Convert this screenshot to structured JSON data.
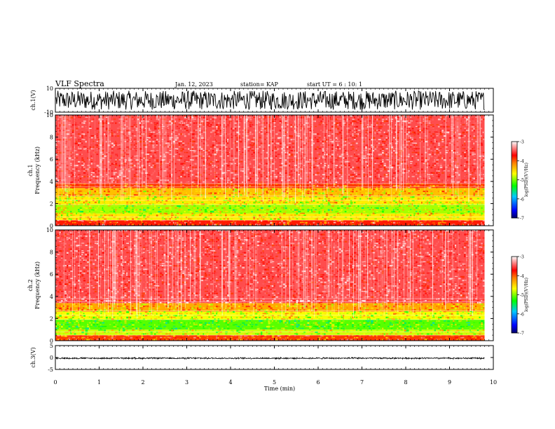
{
  "header": {
    "title": "VLF Spectra",
    "date": "Jan. 12, 2023",
    "station": "station= KAP",
    "start": "start UT = 6 : 10: 1"
  },
  "colors": {
    "background": "#ffffff",
    "axis": "#000000",
    "signal": "#000000",
    "colormap": [
      "#000066",
      "#0000ff",
      "#00c8ff",
      "#00ff00",
      "#ffff00",
      "#ff8000",
      "#ff0000",
      "#ff9999",
      "#ffffff"
    ]
  },
  "chart_data": [
    {
      "type": "line",
      "panel": "ch1_waveform",
      "ylabel": "ch.1(V)",
      "ylim": [
        -10,
        10
      ],
      "y_ticks": [
        "10",
        "-10"
      ],
      "x_range": [
        0,
        10
      ],
      "data_end": 9.8,
      "trace_level": 0,
      "trace_amplitude": 8
    },
    {
      "type": "heatmap",
      "panel": "ch1_spectrogram",
      "ylabel": "ch.1\nFrequency (kHz)",
      "ylim": [
        0,
        10
      ],
      "y_ticks": [
        "0",
        "2",
        "4",
        "6",
        "8",
        "10"
      ],
      "x_range": [
        0,
        10
      ],
      "data_end": 9.8,
      "bands": [
        {
          "from": 0,
          "to": 0.5,
          "level": -3.8
        },
        {
          "from": 0.5,
          "to": 1.1,
          "level": -4.6
        },
        {
          "from": 1.1,
          "to": 1.9,
          "level": -4.9
        },
        {
          "from": 1.9,
          "to": 2.6,
          "level": -4.6
        },
        {
          "from": 2.6,
          "to": 3.4,
          "level": -4.4
        },
        {
          "from": 3.4,
          "to": 3.8,
          "level": -3.9
        },
        {
          "from": 3.8,
          "to": 10,
          "level": -3.5
        }
      ],
      "colorbar": {
        "label": "log(PSD)(V²/Hz)",
        "ticks": [
          "-3",
          "-4",
          "-5",
          "-6",
          "-7"
        ],
        "range": [
          -7,
          -3
        ]
      }
    },
    {
      "type": "heatmap",
      "panel": "ch2_spectrogram",
      "ylabel": "ch.2\nFrequency (kHz)",
      "ylim": [
        0,
        10
      ],
      "y_ticks": [
        "0",
        "2",
        "4",
        "6",
        "8",
        "10"
      ],
      "x_range": [
        0,
        10
      ],
      "data_end": 9.8,
      "bands": [
        {
          "from": 0,
          "to": 0.5,
          "level": -3.9
        },
        {
          "from": 0.5,
          "to": 1.0,
          "level": -4.8
        },
        {
          "from": 1.0,
          "to": 1.9,
          "level": -5.1
        },
        {
          "from": 1.9,
          "to": 2.6,
          "level": -4.7
        },
        {
          "from": 2.6,
          "to": 3.4,
          "level": -4.3
        },
        {
          "from": 3.4,
          "to": 10,
          "level": -3.5
        }
      ],
      "colorbar": {
        "label": "log(PSD)(V²/Hz)",
        "ticks": [
          "-3",
          "-4",
          "-5",
          "-6",
          "-7"
        ],
        "range": [
          -7,
          -3
        ]
      }
    },
    {
      "type": "line",
      "panel": "ch3_waveform",
      "ylabel": "ch.3(V)",
      "ylim": [
        -5,
        5
      ],
      "y_ticks": [
        "5",
        "0",
        "-5"
      ],
      "x_range": [
        0,
        10
      ],
      "data_end": 9.8,
      "trace_level": -0.3,
      "trace_amplitude": 0.4
    }
  ],
  "x_axis": {
    "label": "Time (min)",
    "range": [
      0,
      10
    ],
    "ticks": [
      "0",
      "1",
      "2",
      "3",
      "4",
      "5",
      "6",
      "7",
      "8",
      "9",
      "10"
    ]
  }
}
